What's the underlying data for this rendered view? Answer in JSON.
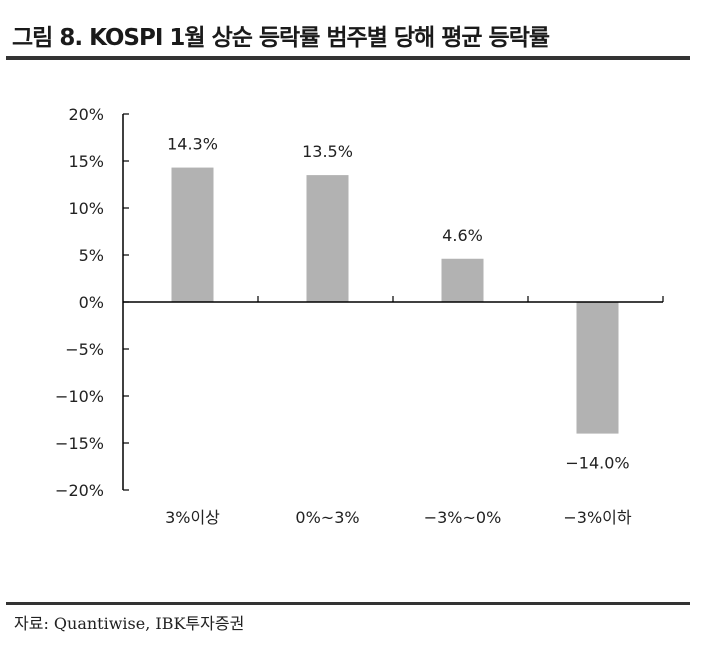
{
  "title": "그림 8. KOSPI 1월 상순 등락률 범주별 당해 평균 등락률",
  "source": "자료: Quantiwise, IBK투자증권",
  "colors": {
    "bar": "#b2b2b2",
    "axis": "#000000",
    "rule": "#333333"
  },
  "chart_data": {
    "type": "bar",
    "title": "그림 8. KOSPI 1월 상순 등락률 범주별 당해 평균 등락률",
    "xlabel": "",
    "ylabel": "",
    "categories": [
      "3%이상",
      "0%~3%",
      "−3%~0%",
      "−3%이하"
    ],
    "values": [
      14.3,
      13.5,
      4.6,
      -14.0
    ],
    "data_labels": [
      "14.3%",
      "13.5%",
      "4.6%",
      "−14.0%"
    ],
    "ylim": [
      -20,
      20
    ],
    "yticks": [
      20,
      15,
      10,
      5,
      0,
      -5,
      -10,
      -15,
      -20
    ],
    "ytick_labels": [
      "20%",
      "15%",
      "10%",
      "5%",
      "0%",
      "−5%",
      "−10%",
      "−15%",
      "−20%"
    ],
    "grid": false,
    "legend": null
  }
}
